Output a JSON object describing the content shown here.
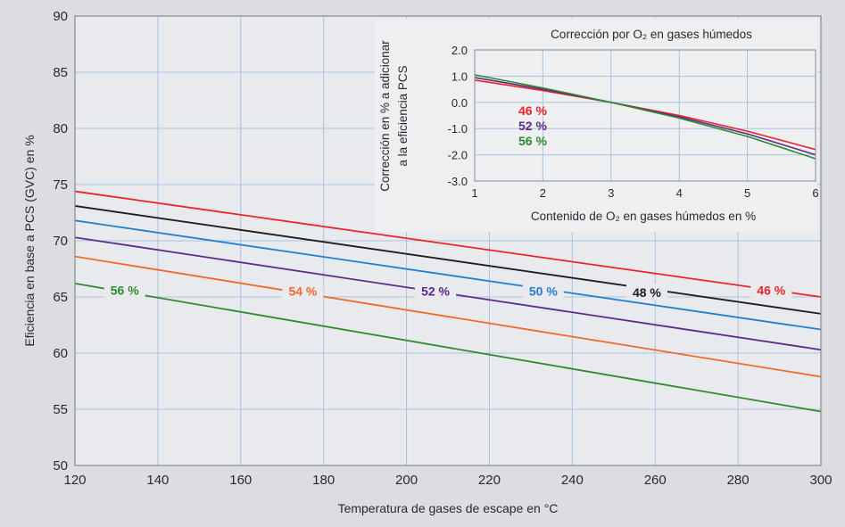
{
  "chart_data": [
    {
      "type": "line",
      "title": "",
      "xlabel": "Temperatura de gases de escape en °C",
      "ylabel": "Eficiencia en base a PCS (GVC) en %",
      "xlim": [
        120,
        300
      ],
      "ylim": [
        50,
        90
      ],
      "xticks": [
        120,
        140,
        160,
        180,
        200,
        220,
        240,
        260,
        280,
        300
      ],
      "yticks": [
        50,
        55,
        60,
        65,
        70,
        75,
        80,
        85,
        90
      ],
      "grid": true,
      "series": [
        {
          "name": "46 %",
          "color": "#e8242a",
          "x": [
            120,
            300
          ],
          "y": [
            74.4,
            65.0
          ]
        },
        {
          "name": "48 %",
          "color": "#1c1c22",
          "x": [
            120,
            300
          ],
          "y": [
            73.1,
            63.5
          ]
        },
        {
          "name": "50 %",
          "color": "#1f7fd0",
          "x": [
            120,
            300
          ],
          "y": [
            71.8,
            62.1
          ]
        },
        {
          "name": "52 %",
          "color": "#5b2a8c",
          "x": [
            120,
            300
          ],
          "y": [
            70.3,
            60.3
          ]
        },
        {
          "name": "54 %",
          "color": "#f06a2a",
          "x": [
            120,
            300
          ],
          "y": [
            68.6,
            57.9
          ]
        },
        {
          "name": "56 %",
          "color": "#2e8b2e",
          "x": [
            120,
            300
          ],
          "y": [
            66.2,
            54.8
          ]
        }
      ],
      "labels": [
        {
          "text": "56 %",
          "color": "#2e8b2e",
          "x": 132,
          "y": 65.6
        },
        {
          "text": "54 %",
          "color": "#f06a2a",
          "x": 175,
          "y": 65.5
        },
        {
          "text": "52 %",
          "color": "#5b2a8c",
          "x": 207,
          "y": 65.5
        },
        {
          "text": "50 %",
          "color": "#1f7fd0",
          "x": 233,
          "y": 65.5
        },
        {
          "text": "48 %",
          "color": "#1c1c22",
          "x": 258,
          "y": 65.4
        },
        {
          "text": "46 %",
          "color": "#e8242a",
          "x": 288,
          "y": 65.6
        }
      ]
    },
    {
      "type": "line",
      "title": "Corrección por O₂ en gases húmedos",
      "xlabel": "Contenido de O₂ en gases húmedos en %",
      "ylabel": [
        "Corrección en % a adicionar",
        "a la eficiencia PCS"
      ],
      "xlim": [
        1,
        6
      ],
      "ylim": [
        -3.0,
        2.0
      ],
      "xticks": [
        1,
        2,
        3,
        4,
        5,
        6
      ],
      "yticks": [
        "2.0",
        "1.0",
        "0.0",
        "-1.0",
        "-2.0",
        "-3.0"
      ],
      "grid": true,
      "series": [
        {
          "name": "46 %",
          "color": "#e8242a",
          "x": [
            1,
            2,
            3,
            4,
            5,
            6
          ],
          "y": [
            0.85,
            0.45,
            0.0,
            -0.5,
            -1.1,
            -1.8
          ]
        },
        {
          "name": "52 %",
          "color": "#5b2a8c",
          "x": [
            1,
            2,
            3,
            4,
            5,
            6
          ],
          "y": [
            0.95,
            0.5,
            0.0,
            -0.55,
            -1.2,
            -2.0
          ]
        },
        {
          "name": "56 %",
          "color": "#2e8b2e",
          "x": [
            1,
            2,
            3,
            4,
            5,
            6
          ],
          "y": [
            1.05,
            0.55,
            0.0,
            -0.6,
            -1.3,
            -2.15
          ]
        }
      ],
      "legend": [
        "46 %",
        "52 %",
        "56 %"
      ]
    }
  ]
}
